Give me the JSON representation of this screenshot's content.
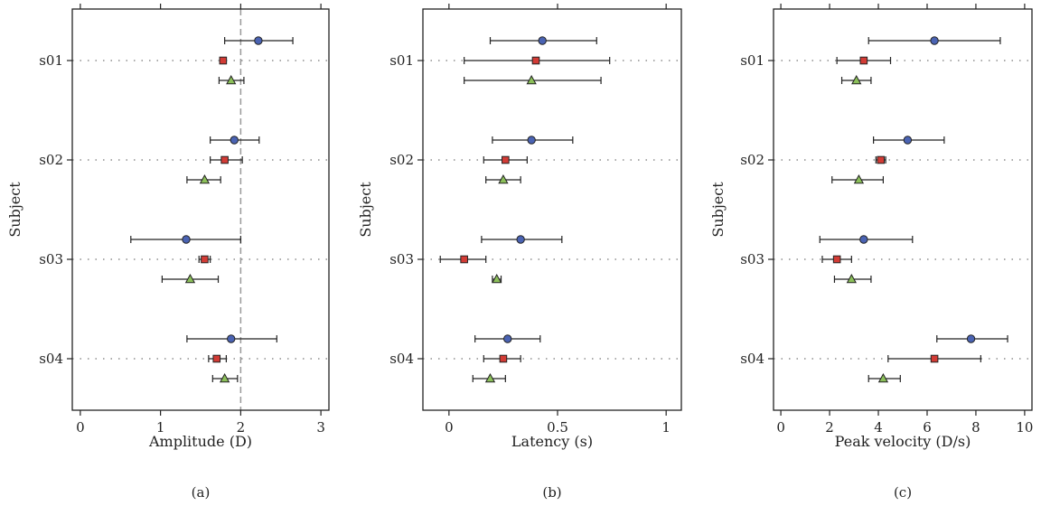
{
  "colors": {
    "series_1": "#4a63b3",
    "series_2": "#d23b35",
    "series_3": "#8cc05a",
    "refline": "#999999",
    "frame": "#222222"
  },
  "chart_data": [
    {
      "type": "scatter",
      "panel_label": "(a)",
      "xlabel": "Amplitude (D)",
      "ylabel": "Subject",
      "xlim": [
        -0.1,
        3.1
      ],
      "xticks": [
        0,
        1,
        2,
        3
      ],
      "reference_line_x": 2,
      "categories": [
        "s01",
        "s02",
        "s03",
        "s04"
      ],
      "series": [
        {
          "marker": "circle",
          "values": [
            2.22,
            1.92,
            1.32,
            1.88
          ],
          "err_low": [
            1.8,
            1.62,
            0.63,
            1.33
          ],
          "err_high": [
            2.65,
            2.23,
            2.0,
            2.45
          ]
        },
        {
          "marker": "square",
          "values": [
            1.78,
            1.8,
            1.55,
            1.7
          ],
          "err_low": [
            1.75,
            1.62,
            1.48,
            1.6
          ],
          "err_high": [
            1.82,
            2.02,
            1.62,
            1.82
          ]
        },
        {
          "marker": "triangle",
          "values": [
            1.88,
            1.55,
            1.37,
            1.8
          ],
          "err_low": [
            1.73,
            1.33,
            1.02,
            1.65
          ],
          "err_high": [
            2.04,
            1.75,
            1.72,
            1.96
          ]
        }
      ]
    },
    {
      "type": "scatter",
      "panel_label": "(b)",
      "xlabel": "Latency (s)",
      "ylabel": "Subject",
      "xlim": [
        -0.12,
        1.07
      ],
      "xticks": [
        0,
        0.5,
        1
      ],
      "categories": [
        "s01",
        "s02",
        "s03",
        "s04"
      ],
      "series": [
        {
          "marker": "circle",
          "values": [
            0.43,
            0.38,
            0.33,
            0.27
          ],
          "err_low": [
            0.19,
            0.2,
            0.15,
            0.12
          ],
          "err_high": [
            0.68,
            0.57,
            0.52,
            0.42
          ]
        },
        {
          "marker": "square",
          "values": [
            0.4,
            0.26,
            0.07,
            0.25
          ],
          "err_low": [
            0.07,
            0.16,
            -0.04,
            0.16
          ],
          "err_high": [
            0.74,
            0.36,
            0.17,
            0.33
          ]
        },
        {
          "marker": "triangle",
          "values": [
            0.38,
            0.25,
            0.22,
            0.19
          ],
          "err_low": [
            0.07,
            0.17,
            0.2,
            0.11
          ],
          "err_high": [
            0.7,
            0.33,
            0.24,
            0.26
          ]
        }
      ]
    },
    {
      "type": "scatter",
      "panel_label": "(c)",
      "xlabel": "Peak velocity (D/s)",
      "ylabel": "Subject",
      "xlim": [
        -0.3,
        10.3
      ],
      "xticks": [
        0,
        2,
        4,
        6,
        8,
        10
      ],
      "categories": [
        "s01",
        "s02",
        "s03",
        "s04"
      ],
      "series": [
        {
          "marker": "circle",
          "values": [
            6.3,
            5.2,
            3.4,
            7.8
          ],
          "err_low": [
            3.6,
            3.8,
            1.6,
            6.4
          ],
          "err_high": [
            9.0,
            6.7,
            5.4,
            9.3
          ]
        },
        {
          "marker": "square",
          "values": [
            3.4,
            4.1,
            2.3,
            6.3
          ],
          "err_low": [
            2.3,
            3.9,
            1.7,
            4.4
          ],
          "err_high": [
            4.5,
            4.3,
            2.9,
            8.2
          ]
        },
        {
          "marker": "triangle",
          "values": [
            3.1,
            3.2,
            2.9,
            4.2
          ],
          "err_low": [
            2.5,
            2.1,
            2.2,
            3.6
          ],
          "err_high": [
            3.7,
            4.2,
            3.7,
            4.9
          ]
        }
      ]
    }
  ]
}
